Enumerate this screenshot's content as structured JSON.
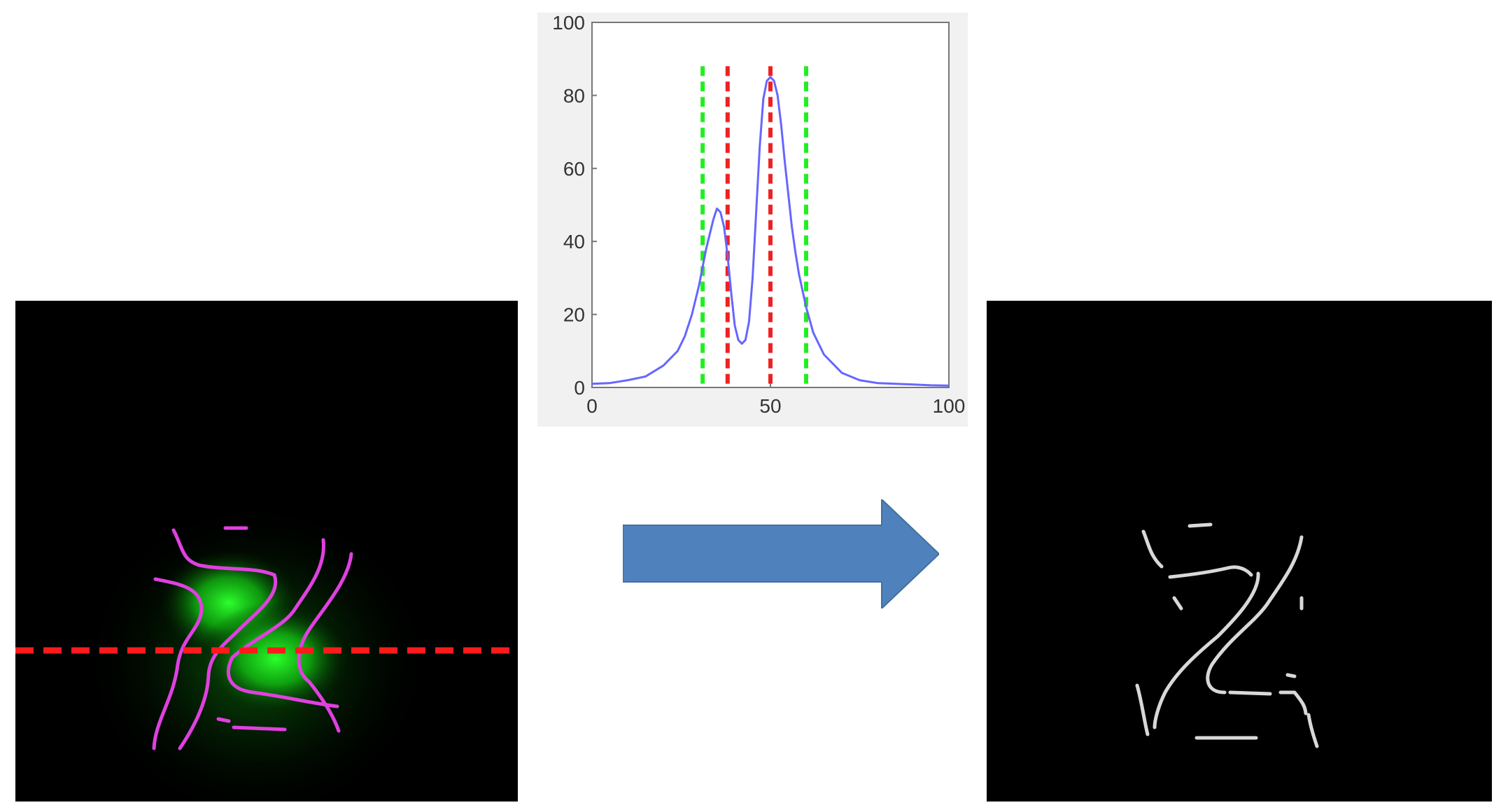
{
  "colors": {
    "background": "#ffffff",
    "image_background": "#000000",
    "fluorescence": "#1aff1a",
    "magenta_trace": "#e040e0",
    "scan_line": "#ff1a1a",
    "profile_line": "#6666ff",
    "outer_bound": "#22ee22",
    "inner_bound": "#ee2222",
    "arrow": "#4f81bd",
    "skeleton": "#d8d8d8"
  },
  "icons": {
    "arrow": "right-arrow-icon"
  },
  "chart_data": {
    "type": "line",
    "title": "",
    "xlabel": "",
    "ylabel": "",
    "xlim": [
      0,
      100
    ],
    "ylim": [
      0,
      100
    ],
    "x_ticks": [
      "0",
      "50",
      "100"
    ],
    "y_ticks": [
      "0",
      "20",
      "40",
      "60",
      "80",
      "100"
    ],
    "grid": false,
    "series": [
      {
        "x": [
          0,
          5,
          10,
          15,
          20,
          24,
          26,
          28,
          30,
          32,
          34,
          35,
          36,
          37,
          38,
          39,
          40,
          41,
          42,
          43,
          44,
          45,
          46,
          47,
          48,
          49,
          50,
          51,
          52,
          53,
          54,
          55,
          56,
          57,
          58,
          60,
          62,
          65,
          70,
          75,
          80,
          85,
          90,
          95,
          100
        ],
        "y": [
          1,
          1.2,
          2,
          3,
          6,
          10,
          14,
          20,
          28,
          38,
          46,
          49,
          48,
          44,
          36,
          26,
          17,
          13,
          12,
          13,
          18,
          30,
          48,
          66,
          79,
          84,
          85,
          84,
          80,
          72,
          62,
          53,
          44,
          37,
          31,
          22,
          15,
          9,
          4,
          2,
          1.2,
          1,
          0.8,
          0.6,
          0.5
        ]
      }
    ],
    "vertical_markers": [
      {
        "x": 31,
        "y_top": 88,
        "color": "#22ee22"
      },
      {
        "x": 38,
        "y_top": 88,
        "color": "#ee2222"
      },
      {
        "x": 50,
        "y_top": 88,
        "color": "#ee2222"
      },
      {
        "x": 60,
        "y_top": 88,
        "color": "#22ee22"
      }
    ]
  }
}
